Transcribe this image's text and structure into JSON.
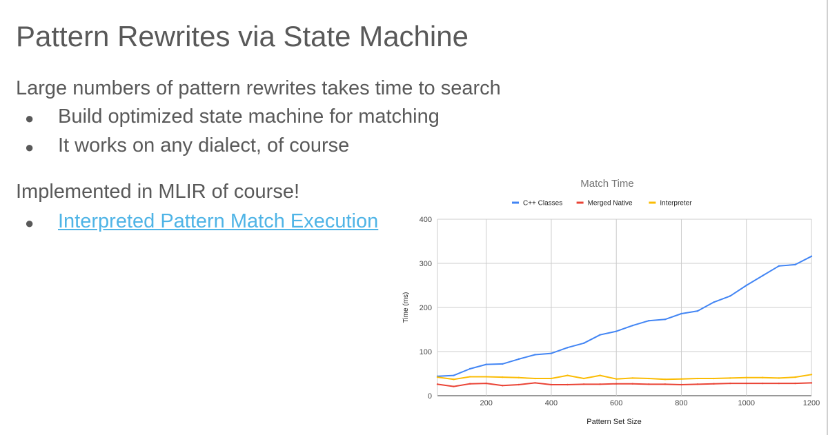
{
  "slide": {
    "title": "Pattern Rewrites via State Machine",
    "para1": "Large numbers of pattern rewrites takes time to search",
    "bullets1": [
      "Build optimized state machine for matching",
      "It works on any dialect, of course"
    ],
    "para2": "Implemented in MLIR of course!",
    "link_text": "Interpreted Pattern Match Execution",
    "bullet_glyph": "●"
  },
  "colors": {
    "text": "#595959",
    "link": "#4fb4e6",
    "series_cpp": "#4285f4",
    "series_merged": "#ea4335",
    "series_interp": "#fbbc04"
  },
  "chart_data": {
    "type": "line",
    "title": "Match Time",
    "xlabel": "Pattern Set Size",
    "ylabel": "Time (ms)",
    "xlim": [
      50,
      1200
    ],
    "ylim": [
      0,
      400
    ],
    "xticks": [
      200,
      400,
      600,
      800,
      1000,
      1200
    ],
    "yticks": [
      0,
      100,
      200,
      300,
      400
    ],
    "grid": true,
    "legend_position": "top",
    "x": [
      50,
      100,
      150,
      200,
      250,
      300,
      350,
      400,
      450,
      500,
      550,
      600,
      650,
      700,
      750,
      800,
      850,
      900,
      950,
      1000,
      1050,
      1100,
      1150,
      1200
    ],
    "series": [
      {
        "name": "C++ Classes",
        "color": "#4285f4",
        "values": [
          44,
          46,
          61,
          71,
          72,
          83,
          93,
          96,
          109,
          119,
          138,
          146,
          159,
          170,
          173,
          186,
          192,
          212,
          226,
          250,
          272,
          294,
          297,
          316
        ]
      },
      {
        "name": "Merged Native",
        "color": "#ea4335",
        "values": [
          26,
          21,
          27,
          28,
          23,
          25,
          29,
          25,
          25,
          26,
          26,
          27,
          27,
          26,
          26,
          25,
          26,
          27,
          28,
          28,
          28,
          28,
          28,
          29
        ]
      },
      {
        "name": "Interpreter",
        "color": "#fbbc04",
        "values": [
          42,
          37,
          43,
          43,
          42,
          41,
          39,
          39,
          46,
          39,
          46,
          38,
          40,
          39,
          37,
          38,
          39,
          39,
          40,
          41,
          41,
          40,
          42,
          48
        ]
      }
    ]
  }
}
